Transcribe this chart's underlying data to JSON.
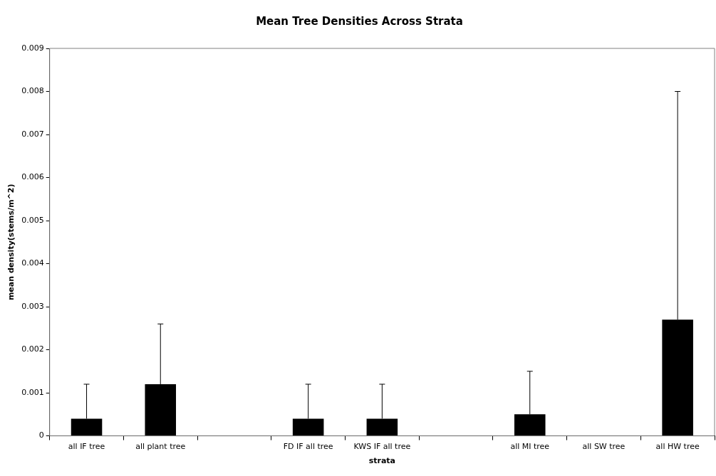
{
  "chart_data": {
    "type": "bar",
    "title": "Mean Tree Densities Across Strata",
    "xlabel": "strata",
    "ylabel": "mean density(stems/m^2)",
    "categories": [
      "all IF tree",
      "all plant tree",
      null,
      "FD IF all tree",
      "KWS IF all tree",
      null,
      "all MI tree",
      "all SW tree",
      "all HW tree"
    ],
    "values": [
      0.0004,
      0.0012,
      null,
      0.0004,
      0.0004,
      null,
      0.0005,
      0,
      0.0027
    ],
    "errors": [
      [
        0.0004,
        0.0012
      ],
      [
        0.0012,
        0.0026
      ],
      null,
      [
        0.0004,
        0.0012
      ],
      [
        0.0004,
        0.0012
      ],
      null,
      [
        0.0005,
        0.0015
      ],
      null,
      [
        0.0027,
        0.008
      ]
    ],
    "color": "#000000",
    "ylim": [
      0,
      0.009
    ],
    "yticks": [
      0,
      0.001,
      0.002,
      0.003,
      0.004,
      0.005,
      0.006,
      0.007,
      0.008,
      0.009
    ],
    "grid": false,
    "legend": false
  }
}
